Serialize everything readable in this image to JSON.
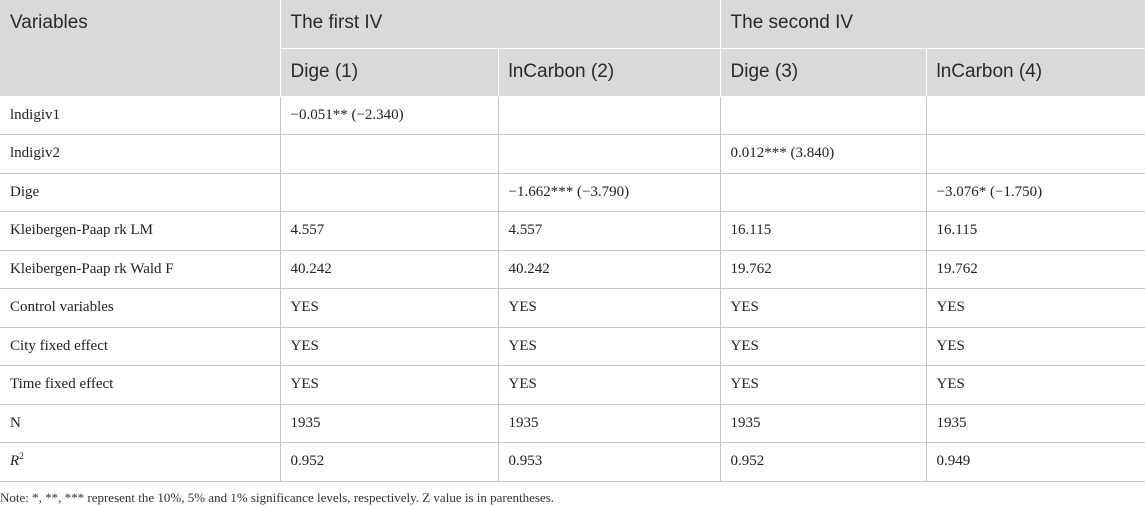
{
  "header": {
    "variables": "Variables",
    "group1": "The first IV",
    "group2": "The second IV",
    "cols": [
      "Dige (1)",
      "lnCarbon (2)",
      "Dige (3)",
      "lnCarbon (4)"
    ]
  },
  "rows": [
    {
      "label": "lndigiv1",
      "cells": [
        "−0.051** (−2.340)",
        "",
        "",
        ""
      ]
    },
    {
      "label": "lndigiv2",
      "cells": [
        "",
        "",
        "0.012*** (3.840)",
        ""
      ]
    },
    {
      "label": "Dige",
      "cells": [
        "",
        "−1.662*** (−3.790)",
        "",
        "−3.076* (−1.750)"
      ]
    },
    {
      "label": "Kleibergen-Paap rk LM",
      "cells": [
        "4.557",
        "4.557",
        "16.115",
        "16.115"
      ]
    },
    {
      "label": "Kleibergen-Paap rk Wald F",
      "cells": [
        "40.242",
        "40.242",
        "19.762",
        "19.762"
      ]
    },
    {
      "label": "Control variables",
      "cells": [
        "YES",
        "YES",
        "YES",
        "YES"
      ]
    },
    {
      "label": "City fixed effect",
      "cells": [
        "YES",
        "YES",
        "YES",
        "YES"
      ]
    },
    {
      "label": "Time fixed effect",
      "cells": [
        "YES",
        "YES",
        "YES",
        "YES"
      ]
    },
    {
      "label": "N",
      "cells": [
        "1935",
        "1935",
        "1935",
        "1935"
      ]
    },
    {
      "label_base": "R",
      "label_sup": "2",
      "cells": [
        "0.952",
        "0.953",
        "0.952",
        "0.949"
      ]
    }
  ],
  "note": "Note: *, **, *** represent the 10%, 5% and 1% significance levels, respectively. Z value is in parentheses."
}
